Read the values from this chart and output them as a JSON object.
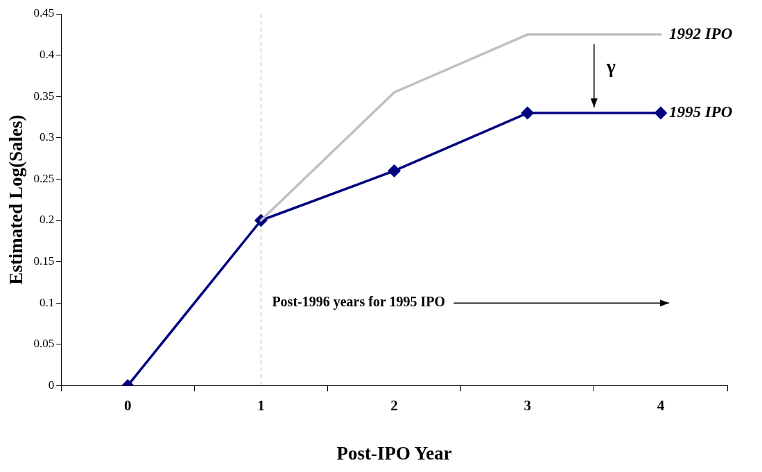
{
  "chart_data": {
    "type": "line",
    "xlabel": "Post-IPO Year",
    "ylabel": "Estimated Log(Sales)",
    "categories": [
      "0",
      "1",
      "2",
      "3",
      "4"
    ],
    "series": [
      {
        "name": "1992 IPO",
        "color": "#c0c0c0",
        "marker": "none",
        "values": [
          null,
          0.2,
          0.355,
          0.425,
          0.425
        ]
      },
      {
        "name": "1995 IPO",
        "color": "#000080",
        "marker": "diamond",
        "values": [
          0,
          0.2,
          0.26,
          0.33,
          0.33
        ]
      }
    ],
    "ylim": [
      0,
      0.45
    ],
    "yticks": [
      0,
      0.05,
      0.1,
      0.15,
      0.2,
      0.25,
      0.3,
      0.35,
      0.4,
      0.45
    ],
    "grid": false,
    "legend": false,
    "ref_lines": [
      {
        "axis": "x",
        "value": "1",
        "color": "#c0c0c0",
        "line_style": "dashed"
      }
    ],
    "annotations": [
      {
        "text": "Post-1996 years for 1995 IPO",
        "x": "1",
        "y": 0.1
      },
      "γ"
    ]
  }
}
